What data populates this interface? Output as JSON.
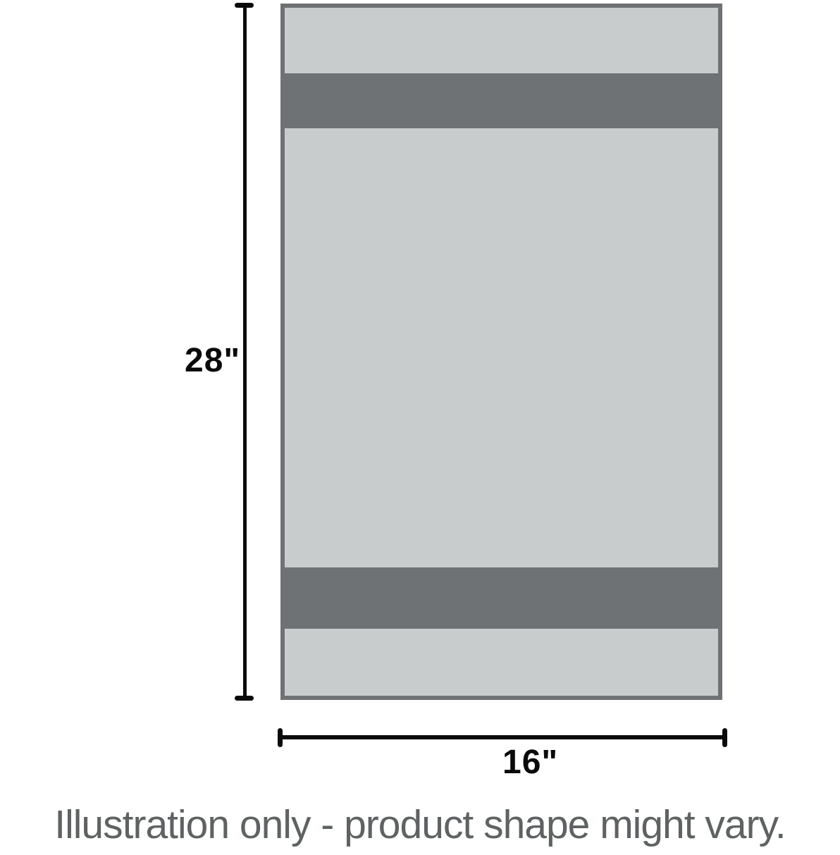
{
  "diagram": {
    "height_label": "28\"",
    "width_label": "16\"",
    "caption": "Illustration only - product shape might vary.",
    "product": {
      "shape": "vertical rectangle with two horizontal dark stripes (near top and near bottom)",
      "stripe_count": 2
    },
    "colors": {
      "product_fill": "#C8CCCD",
      "product_stripe_and_border": "#6F7274",
      "dimension_lines": "#0A0A0A",
      "caption_text": "#5E6263",
      "background": "#FFFFFF"
    }
  }
}
